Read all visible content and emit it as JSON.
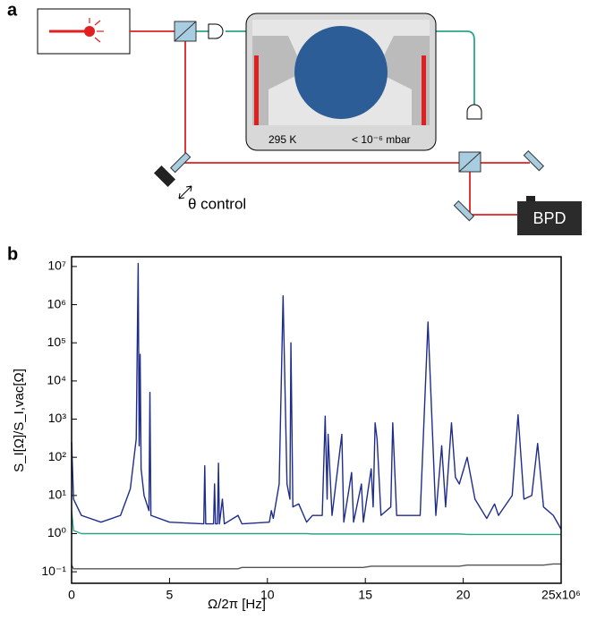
{
  "diagram": {
    "panel_a": "a",
    "panel_b": "b",
    "temperature": "295 K",
    "pressure": "< 10⁻⁶ mbar",
    "phase_control": "θ control",
    "detector": "BPD"
  },
  "chart_data": {
    "type": "line",
    "xlabel": "Ω/2π [Hz]",
    "ylabel": "S_I[Ω]/S_I,vac[Ω]",
    "log_y": true,
    "xlim": [
      0,
      25
    ],
    "xticks": [
      0,
      5,
      10,
      15,
      20,
      {
        "value": 25,
        "label": "25x10⁶"
      }
    ],
    "ylim": [
      0.05,
      18000000
    ],
    "yticks": [
      {
        "value": 0.1,
        "label": "10⁻¹"
      },
      {
        "value": 1,
        "label": "10⁰"
      },
      {
        "value": 10,
        "label": "10¹"
      },
      {
        "value": 100,
        "label": "10²"
      },
      {
        "value": 1000,
        "label": "10³"
      },
      {
        "value": 10000,
        "label": "10⁴"
      },
      {
        "value": 100000,
        "label": "10⁵"
      },
      {
        "value": 1000000,
        "label": "10⁶"
      },
      {
        "value": 10000000,
        "label": "10⁷"
      }
    ],
    "x": [
      0,
      0.1,
      0.5,
      1.5,
      2.5,
      3.0,
      3.3,
      3.4,
      3.45,
      3.5,
      3.55,
      3.7,
      3.95,
      4.0,
      4.05,
      5.0,
      6.75,
      6.8,
      6.85,
      7.25,
      7.3,
      7.35,
      7.45,
      7.5,
      7.55,
      7.7,
      7.8,
      8.5,
      8.7,
      10.1,
      10.2,
      10.3,
      10.6,
      10.8,
      11.0,
      11.15,
      11.2,
      11.3,
      11.6,
      12.0,
      12.3,
      12.8,
      12.95,
      13.05,
      13.1,
      13.3,
      13.8,
      13.9,
      14.3,
      14.4,
      14.8,
      14.9,
      15.3,
      15.4,
      15.5,
      15.6,
      15.8,
      16.3,
      16.4,
      16.6,
      17.4,
      17.8,
      18.2,
      18.6,
      18.9,
      19.1,
      19.4,
      19.6,
      19.8,
      20.2,
      20.6,
      21.2,
      21.6,
      21.8,
      22.5,
      22.8,
      23.1,
      23.5,
      23.8,
      24.1,
      24.6,
      25
    ],
    "series": [
      {
        "color": "#1f2d8a",
        "values": [
          250,
          8,
          3,
          2,
          3,
          15,
          300,
          12000000,
          200,
          50000,
          50,
          10,
          4,
          5000,
          3,
          2,
          1.8,
          60,
          1.8,
          1.8,
          20,
          1.8,
          1.8,
          70,
          1.8,
          8,
          1.8,
          3,
          1.8,
          2,
          4,
          2.5,
          20,
          1700000,
          20,
          8,
          100000,
          5,
          6,
          2,
          3,
          3,
          1200,
          8,
          400,
          3,
          400,
          2,
          40,
          2,
          20,
          2,
          50,
          5,
          800,
          300,
          3,
          5,
          800,
          3,
          3,
          3,
          350000,
          3,
          200,
          5,
          800,
          30,
          20,
          100,
          8,
          2.5,
          6,
          3,
          10,
          1300,
          8,
          10,
          230,
          5,
          3,
          1.3
        ]
      },
      {
        "color": "#2aa58a",
        "values": [
          4,
          1.2,
          1,
          1,
          1,
          1,
          1,
          1,
          1,
          1,
          1,
          1,
          1,
          1,
          1,
          1,
          1,
          1,
          1,
          1,
          1,
          1,
          1,
          1,
          1,
          1,
          1,
          1,
          1,
          1,
          1,
          1,
          1,
          1,
          1,
          1,
          1,
          1,
          1,
          1,
          0.98,
          0.98,
          0.98,
          0.98,
          0.98,
          0.98,
          0.98,
          0.98,
          0.98,
          0.98,
          0.98,
          0.98,
          0.98,
          0.98,
          0.98,
          0.98,
          0.98,
          0.98,
          0.98,
          0.98,
          0.98,
          0.98,
          0.98,
          0.98,
          0.98,
          0.98,
          0.98,
          0.98,
          0.98,
          0.95,
          0.95,
          0.95,
          0.95,
          0.95,
          0.95,
          0.95,
          0.95,
          0.95,
          0.95,
          0.95,
          0.95,
          0.95
        ]
      },
      {
        "color": "#555555",
        "values": [
          0.15,
          0.12,
          0.12,
          0.12,
          0.12,
          0.12,
          0.12,
          0.12,
          0.12,
          0.12,
          0.12,
          0.12,
          0.12,
          0.12,
          0.12,
          0.12,
          0.12,
          0.12,
          0.12,
          0.12,
          0.12,
          0.12,
          0.12,
          0.12,
          0.12,
          0.12,
          0.12,
          0.12,
          0.13,
          0.13,
          0.13,
          0.13,
          0.13,
          0.13,
          0.13,
          0.13,
          0.13,
          0.13,
          0.13,
          0.13,
          0.13,
          0.13,
          0.13,
          0.13,
          0.13,
          0.13,
          0.13,
          0.13,
          0.13,
          0.13,
          0.13,
          0.13,
          0.14,
          0.14,
          0.14,
          0.14,
          0.14,
          0.14,
          0.14,
          0.14,
          0.14,
          0.14,
          0.14,
          0.14,
          0.14,
          0.14,
          0.14,
          0.14,
          0.14,
          0.15,
          0.15,
          0.15,
          0.15,
          0.15,
          0.15,
          0.15,
          0.15,
          0.15,
          0.15,
          0.15,
          0.16,
          0.16
        ]
      }
    ]
  }
}
